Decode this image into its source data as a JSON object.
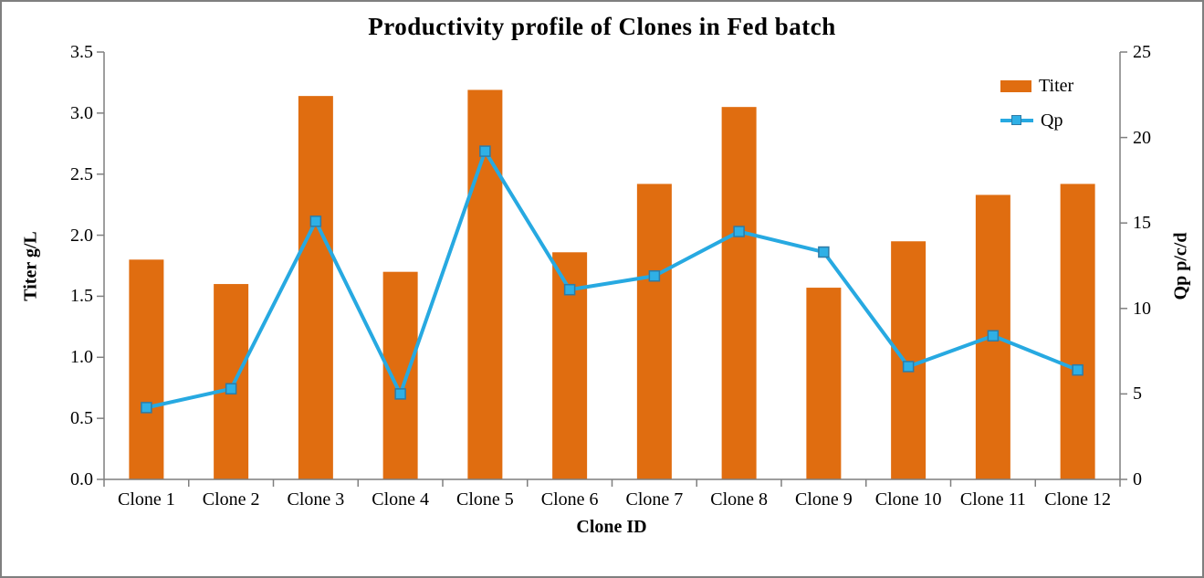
{
  "chart_data": {
    "type": "combo-bar-line",
    "title": "Productivity profile of Clones in Fed batch",
    "categories": [
      "Clone 1",
      "Clone 2",
      "Clone 3",
      "Clone 4",
      "Clone 5",
      "Clone 6",
      "Clone 7",
      "Clone 8",
      "Clone 9",
      "Clone 10",
      "Clone 11",
      "Clone 12"
    ],
    "series": [
      {
        "name": "Titer",
        "type": "bar",
        "axis": "left",
        "values": [
          1.8,
          1.6,
          3.14,
          1.7,
          3.19,
          1.86,
          2.42,
          3.05,
          1.57,
          1.95,
          2.33,
          2.42
        ],
        "color": "#e06d10"
      },
      {
        "name": "Qp",
        "type": "line",
        "axis": "right",
        "values": [
          4.2,
          5.3,
          15.1,
          5.0,
          19.2,
          11.1,
          11.9,
          14.5,
          13.3,
          6.6,
          8.4,
          6.4
        ],
        "color": "#27a9e1",
        "marker_fill": "#2fb0e6",
        "marker_border": "#2e7ba6"
      }
    ],
    "x_axis": {
      "title": "Clone ID"
    },
    "y_left": {
      "title": "Titer g/L",
      "min": 0,
      "max": 3.5,
      "tick_step": 0.5,
      "tick_labels": [
        "0.0",
        "0.5",
        "1.0",
        "1.5",
        "2.0",
        "2.5",
        "3.0",
        "3.5"
      ]
    },
    "y_right": {
      "title": "Qp p/c/d",
      "min": 0,
      "max": 25,
      "tick_step": 5,
      "tick_labels": [
        "0",
        "5",
        "10",
        "15",
        "20",
        "25"
      ]
    },
    "legend": {
      "position": "top-right",
      "entries": [
        "Titer",
        "Qp"
      ]
    },
    "grid": false,
    "axis_color": "#7f7f7f",
    "text_color": "#000000"
  }
}
